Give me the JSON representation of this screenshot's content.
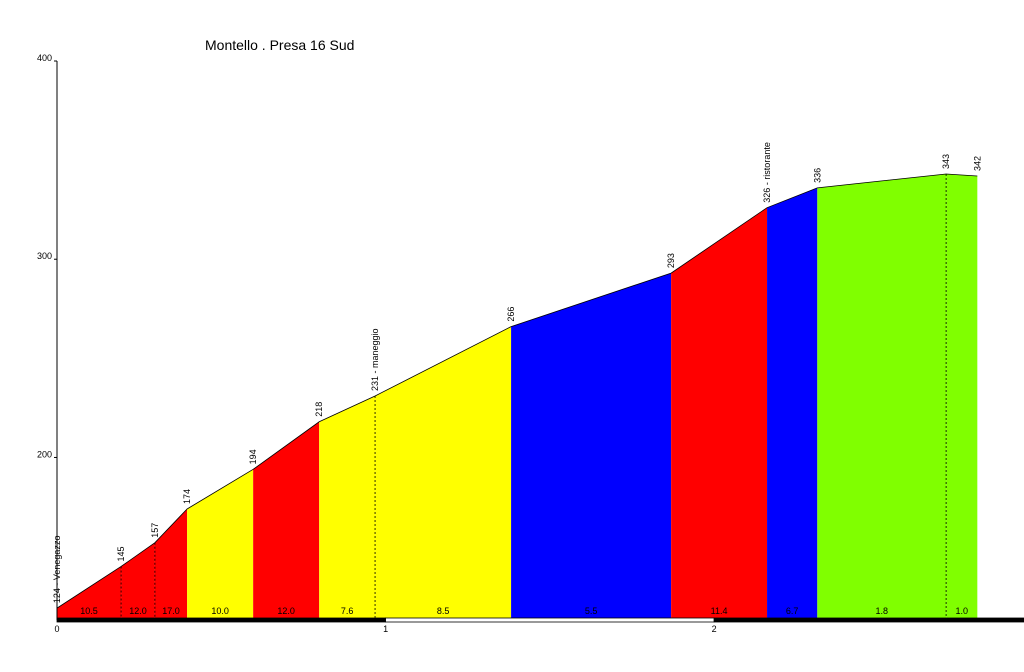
{
  "chart_data": {
    "type": "elevation-profile",
    "title": "Montello . Presa 16 Sud",
    "x": [
      0,
      0.195,
      0.298,
      0.396,
      0.597,
      0.798,
      0.968,
      1.382,
      1.869,
      2.161,
      2.314,
      2.706,
      2.801
    ],
    "values": [
      124,
      145,
      157,
      174,
      194,
      218,
      231,
      266,
      293,
      326,
      336,
      343,
      342
    ],
    "value_labels": [
      "124 - Venegazzo",
      "145",
      "157",
      "174",
      "194",
      "218",
      "231 - maneggio",
      "266",
      "293",
      "326 - ristorante",
      "336",
      "343",
      "342"
    ],
    "grades": [
      "10.5",
      "12.0",
      "17.0",
      "10.0",
      "12.0",
      "7.6",
      "8.5",
      "5.5",
      "11.4",
      "6.7",
      "1.8",
      "1.0"
    ],
    "segment_colors": [
      "#ff0000",
      "#ff0000",
      "#ff0000",
      "#ffff00",
      "#ff0000",
      "#ffff00",
      "#ffff00",
      "#0000ff",
      "#ff0000",
      "#0000ff",
      "#80ff00",
      "#80ff00"
    ],
    "xlim": [
      0,
      2.94
    ],
    "ylim": [
      118,
      400
    ],
    "xticks": [
      0,
      1,
      2
    ],
    "yticks": [
      200,
      300,
      400
    ]
  }
}
